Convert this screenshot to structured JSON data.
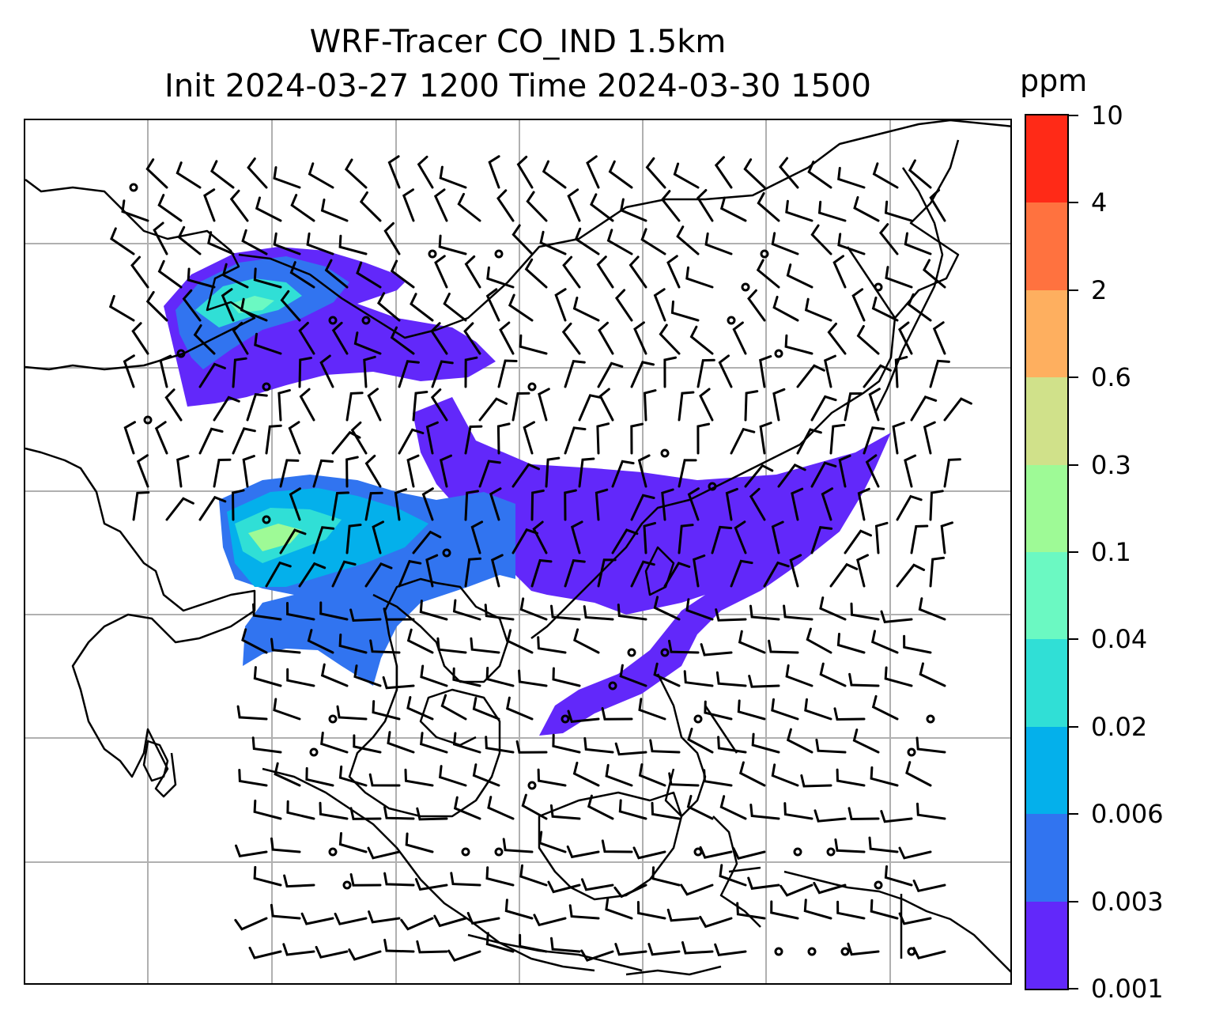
{
  "title": {
    "line1": "WRF-Tracer CO_IND 1.5km",
    "line2": "Init 2024-03-27 1200 Time 2024-03-30 1500"
  },
  "colorbar": {
    "unit_label": "ppm",
    "levels": [
      "0.001",
      "0.003",
      "0.006",
      "0.02",
      "0.04",
      "0.1",
      "0.3",
      "0.6",
      "2",
      "4",
      "10"
    ],
    "colors": [
      "#6228fa",
      "#3174f0",
      "#04b0eb",
      "#30dfd6",
      "#6bf9c2",
      "#9efa96",
      "#d0e18a",
      "#feaf5f",
      "#ff723f",
      "#ff2a17"
    ]
  },
  "map": {
    "gridlines": true,
    "wind_barbs": true,
    "coastlines": true
  }
}
